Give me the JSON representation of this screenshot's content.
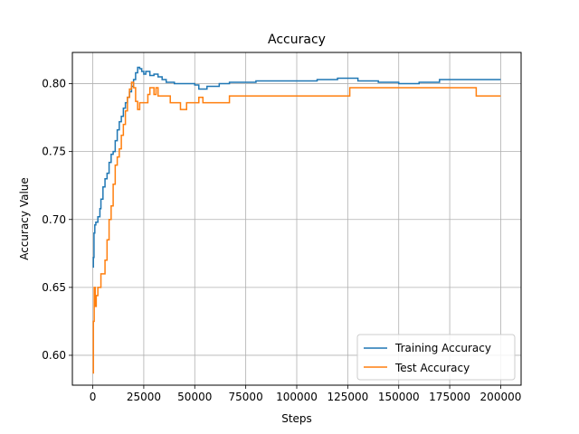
{
  "chart_data": {
    "type": "line",
    "title": "Accuracy",
    "xlabel": "Steps",
    "ylabel": "Accuracy Value",
    "xlim": [
      -10000,
      210000
    ],
    "ylim": [
      0.578,
      0.823
    ],
    "grid": true,
    "legend_position": "lower-right",
    "x_ticks": [
      {
        "value": 0,
        "label": "0"
      },
      {
        "value": 25000,
        "label": "25000"
      },
      {
        "value": 50000,
        "label": "50000"
      },
      {
        "value": 75000,
        "label": "75000"
      },
      {
        "value": 100000,
        "label": "100000"
      },
      {
        "value": 125000,
        "label": "125000"
      },
      {
        "value": 150000,
        "label": "150000"
      },
      {
        "value": 175000,
        "label": "175000"
      },
      {
        "value": 200000,
        "label": "200000"
      }
    ],
    "y_ticks": [
      {
        "value": 0.6,
        "label": "0.60"
      },
      {
        "value": 0.65,
        "label": "0.65"
      },
      {
        "value": 0.7,
        "label": "0.70"
      },
      {
        "value": 0.75,
        "label": "0.75"
      },
      {
        "value": 0.8,
        "label": "0.80"
      }
    ],
    "series": [
      {
        "name": "Training Accuracy",
        "color": "#1f77b4",
        "step": true,
        "points": [
          [
            0,
            0.665
          ],
          [
            300,
            0.672
          ],
          [
            600,
            0.69
          ],
          [
            1000,
            0.696
          ],
          [
            1500,
            0.698
          ],
          [
            2500,
            0.702
          ],
          [
            3500,
            0.708
          ],
          [
            4000,
            0.715
          ],
          [
            5000,
            0.724
          ],
          [
            6000,
            0.73
          ],
          [
            7000,
            0.734
          ],
          [
            8000,
            0.742
          ],
          [
            9000,
            0.748
          ],
          [
            10000,
            0.75
          ],
          [
            11000,
            0.758
          ],
          [
            12000,
            0.766
          ],
          [
            13000,
            0.772
          ],
          [
            14000,
            0.776
          ],
          [
            15000,
            0.782
          ],
          [
            16000,
            0.786
          ],
          [
            17000,
            0.79
          ],
          [
            18000,
            0.794
          ],
          [
            19000,
            0.798
          ],
          [
            20000,
            0.803
          ],
          [
            21000,
            0.808
          ],
          [
            22000,
            0.812
          ],
          [
            23000,
            0.811
          ],
          [
            24000,
            0.809
          ],
          [
            25000,
            0.807
          ],
          [
            26000,
            0.809
          ],
          [
            28000,
            0.806
          ],
          [
            30000,
            0.807
          ],
          [
            32000,
            0.805
          ],
          [
            34000,
            0.803
          ],
          [
            36000,
            0.801
          ],
          [
            40000,
            0.8
          ],
          [
            45000,
            0.8
          ],
          [
            50000,
            0.799
          ],
          [
            52000,
            0.796
          ],
          [
            56000,
            0.798
          ],
          [
            62000,
            0.8
          ],
          [
            67000,
            0.801
          ],
          [
            80000,
            0.802
          ],
          [
            100000,
            0.802
          ],
          [
            110000,
            0.803
          ],
          [
            120000,
            0.804
          ],
          [
            130000,
            0.802
          ],
          [
            140000,
            0.801
          ],
          [
            150000,
            0.8
          ],
          [
            160000,
            0.801
          ],
          [
            170000,
            0.803
          ],
          [
            180000,
            0.803
          ],
          [
            190000,
            0.803
          ],
          [
            200000,
            0.803
          ]
        ]
      },
      {
        "name": "Test Accuracy",
        "color": "#ff7f0e",
        "step": true,
        "points": [
          [
            0,
            0.587
          ],
          [
            300,
            0.625
          ],
          [
            700,
            0.65
          ],
          [
            1200,
            0.636
          ],
          [
            1700,
            0.644
          ],
          [
            2500,
            0.65
          ],
          [
            4000,
            0.66
          ],
          [
            6000,
            0.67
          ],
          [
            7000,
            0.685
          ],
          [
            8000,
            0.7
          ],
          [
            9000,
            0.71
          ],
          [
            10000,
            0.726
          ],
          [
            11000,
            0.74
          ],
          [
            12000,
            0.746
          ],
          [
            13000,
            0.752
          ],
          [
            14000,
            0.762
          ],
          [
            15000,
            0.77
          ],
          [
            16000,
            0.78
          ],
          [
            17000,
            0.79
          ],
          [
            18000,
            0.796
          ],
          [
            19000,
            0.801
          ],
          [
            20000,
            0.797
          ],
          [
            21000,
            0.787
          ],
          [
            22000,
            0.781
          ],
          [
            23000,
            0.786
          ],
          [
            25000,
            0.786
          ],
          [
            27000,
            0.792
          ],
          [
            28000,
            0.797
          ],
          [
            30000,
            0.792
          ],
          [
            31000,
            0.797
          ],
          [
            32000,
            0.791
          ],
          [
            35000,
            0.791
          ],
          [
            38000,
            0.786
          ],
          [
            43000,
            0.781
          ],
          [
            46000,
            0.786
          ],
          [
            52000,
            0.79
          ],
          [
            54000,
            0.786
          ],
          [
            60000,
            0.786
          ],
          [
            67000,
            0.791
          ],
          [
            80000,
            0.791
          ],
          [
            100000,
            0.791
          ],
          [
            120000,
            0.791
          ],
          [
            126000,
            0.797
          ],
          [
            150000,
            0.797
          ],
          [
            170000,
            0.797
          ],
          [
            188000,
            0.791
          ],
          [
            200000,
            0.791
          ]
        ]
      }
    ]
  }
}
